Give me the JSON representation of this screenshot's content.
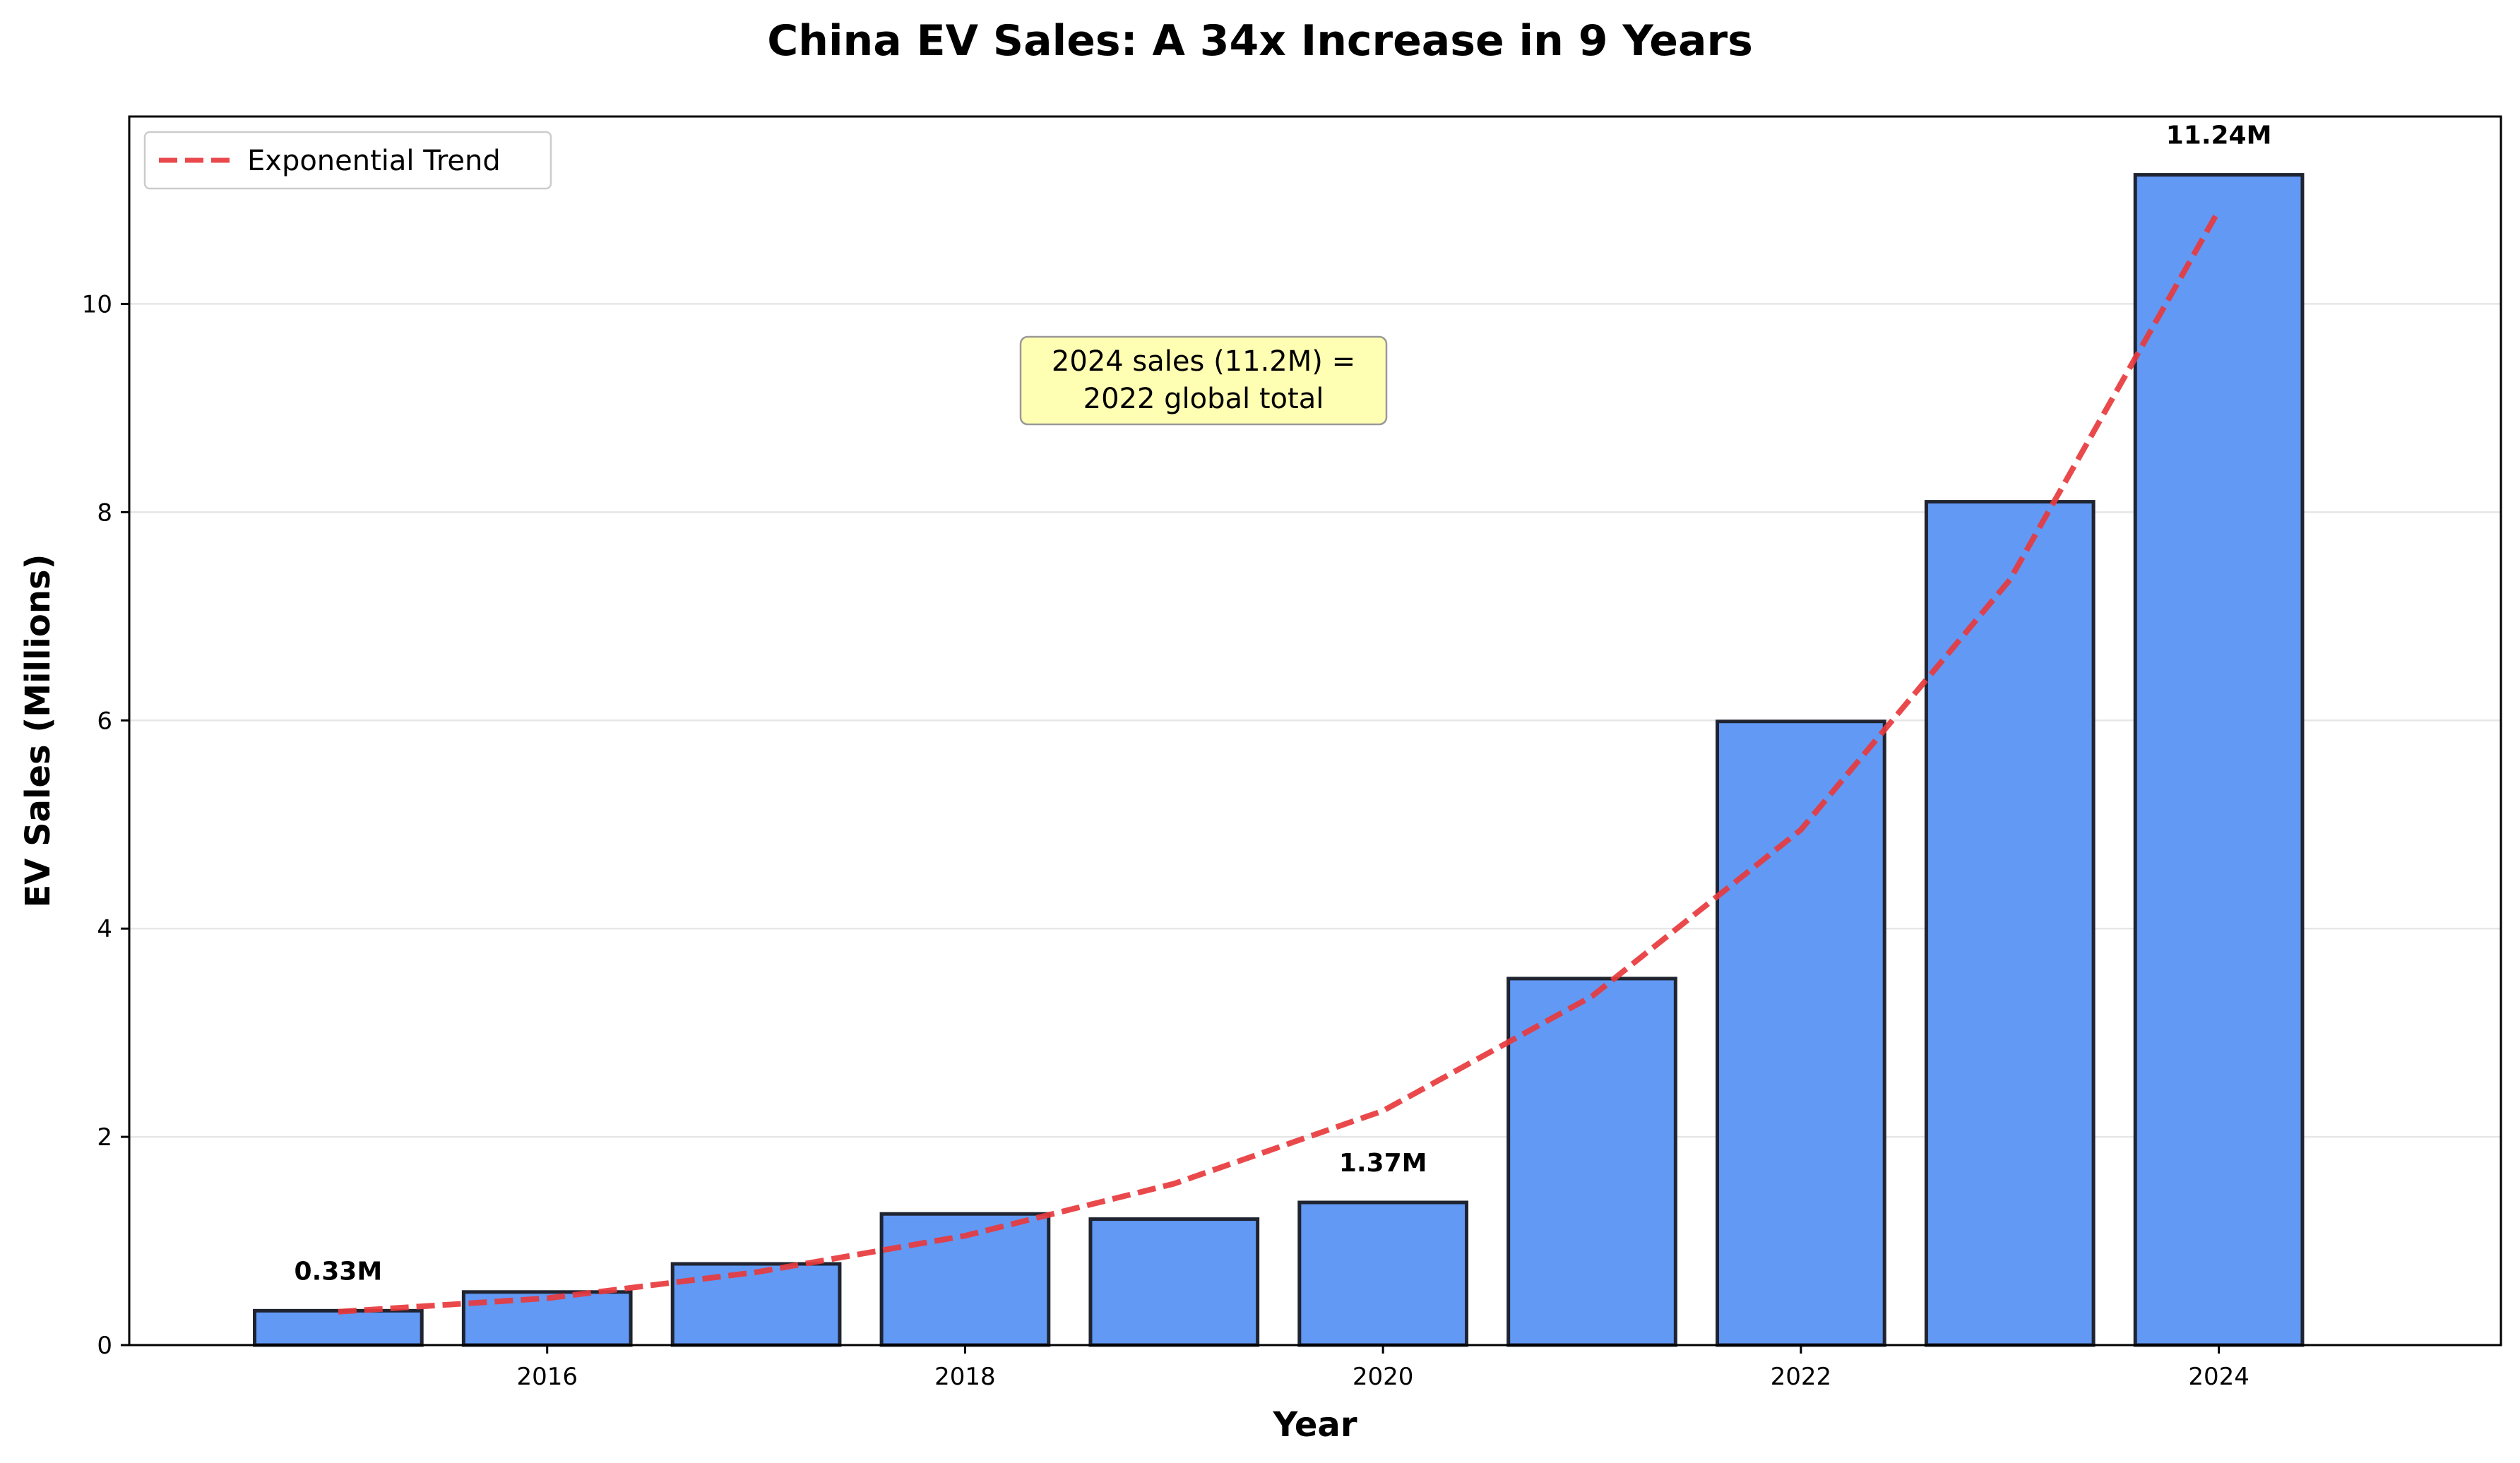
{
  "chart_data": {
    "type": "bar",
    "title": "China EV Sales: A 34x Increase in 9 Years",
    "xlabel": "Year",
    "ylabel": "EV Sales (Millions)",
    "categories": [
      2015,
      2016,
      2017,
      2018,
      2019,
      2020,
      2021,
      2022,
      2023,
      2024
    ],
    "values": [
      0.33,
      0.51,
      0.78,
      1.26,
      1.21,
      1.37,
      3.52,
      5.99,
      8.1,
      11.24
    ],
    "xlim": [
      2014,
      2025.35
    ],
    "ylim": [
      0,
      11.8
    ],
    "xticks": [
      2016,
      2018,
      2020,
      2022,
      2024
    ],
    "xtick_labels": [
      "2016",
      "2018",
      "2020",
      "2022",
      "2024"
    ],
    "yticks": [
      0,
      2,
      4,
      6,
      8,
      10
    ],
    "ytick_labels": [
      "0",
      "2",
      "4",
      "6",
      "8",
      "10"
    ],
    "grid": "y",
    "bar_color": "#6199f5",
    "bar_edge_color": "#1f2430",
    "trend": {
      "name": "Exponential Trend",
      "x": [
        2015,
        2016,
        2017,
        2018,
        2019,
        2020,
        2021,
        2022,
        2023,
        2024
      ],
      "y": [
        0.32,
        0.45,
        0.7,
        1.05,
        1.55,
        2.25,
        3.35,
        4.95,
        7.35,
        10.9
      ],
      "color": "#e8393d",
      "style": "dashed"
    },
    "data_labels": [
      {
        "x": 2015,
        "value": 0.33,
        "text": "0.33M"
      },
      {
        "x": 2020,
        "value": 1.37,
        "text": "1.37M"
      },
      {
        "x": 2024,
        "value": 11.24,
        "text": "11.24M"
      }
    ],
    "annotation": {
      "lines": [
        "2024 sales (11.2M) =",
        "2022 global total"
      ],
      "background": "#ffffb3"
    },
    "legend": {
      "position": "top-left",
      "entries": [
        "Exponential Trend"
      ]
    }
  }
}
